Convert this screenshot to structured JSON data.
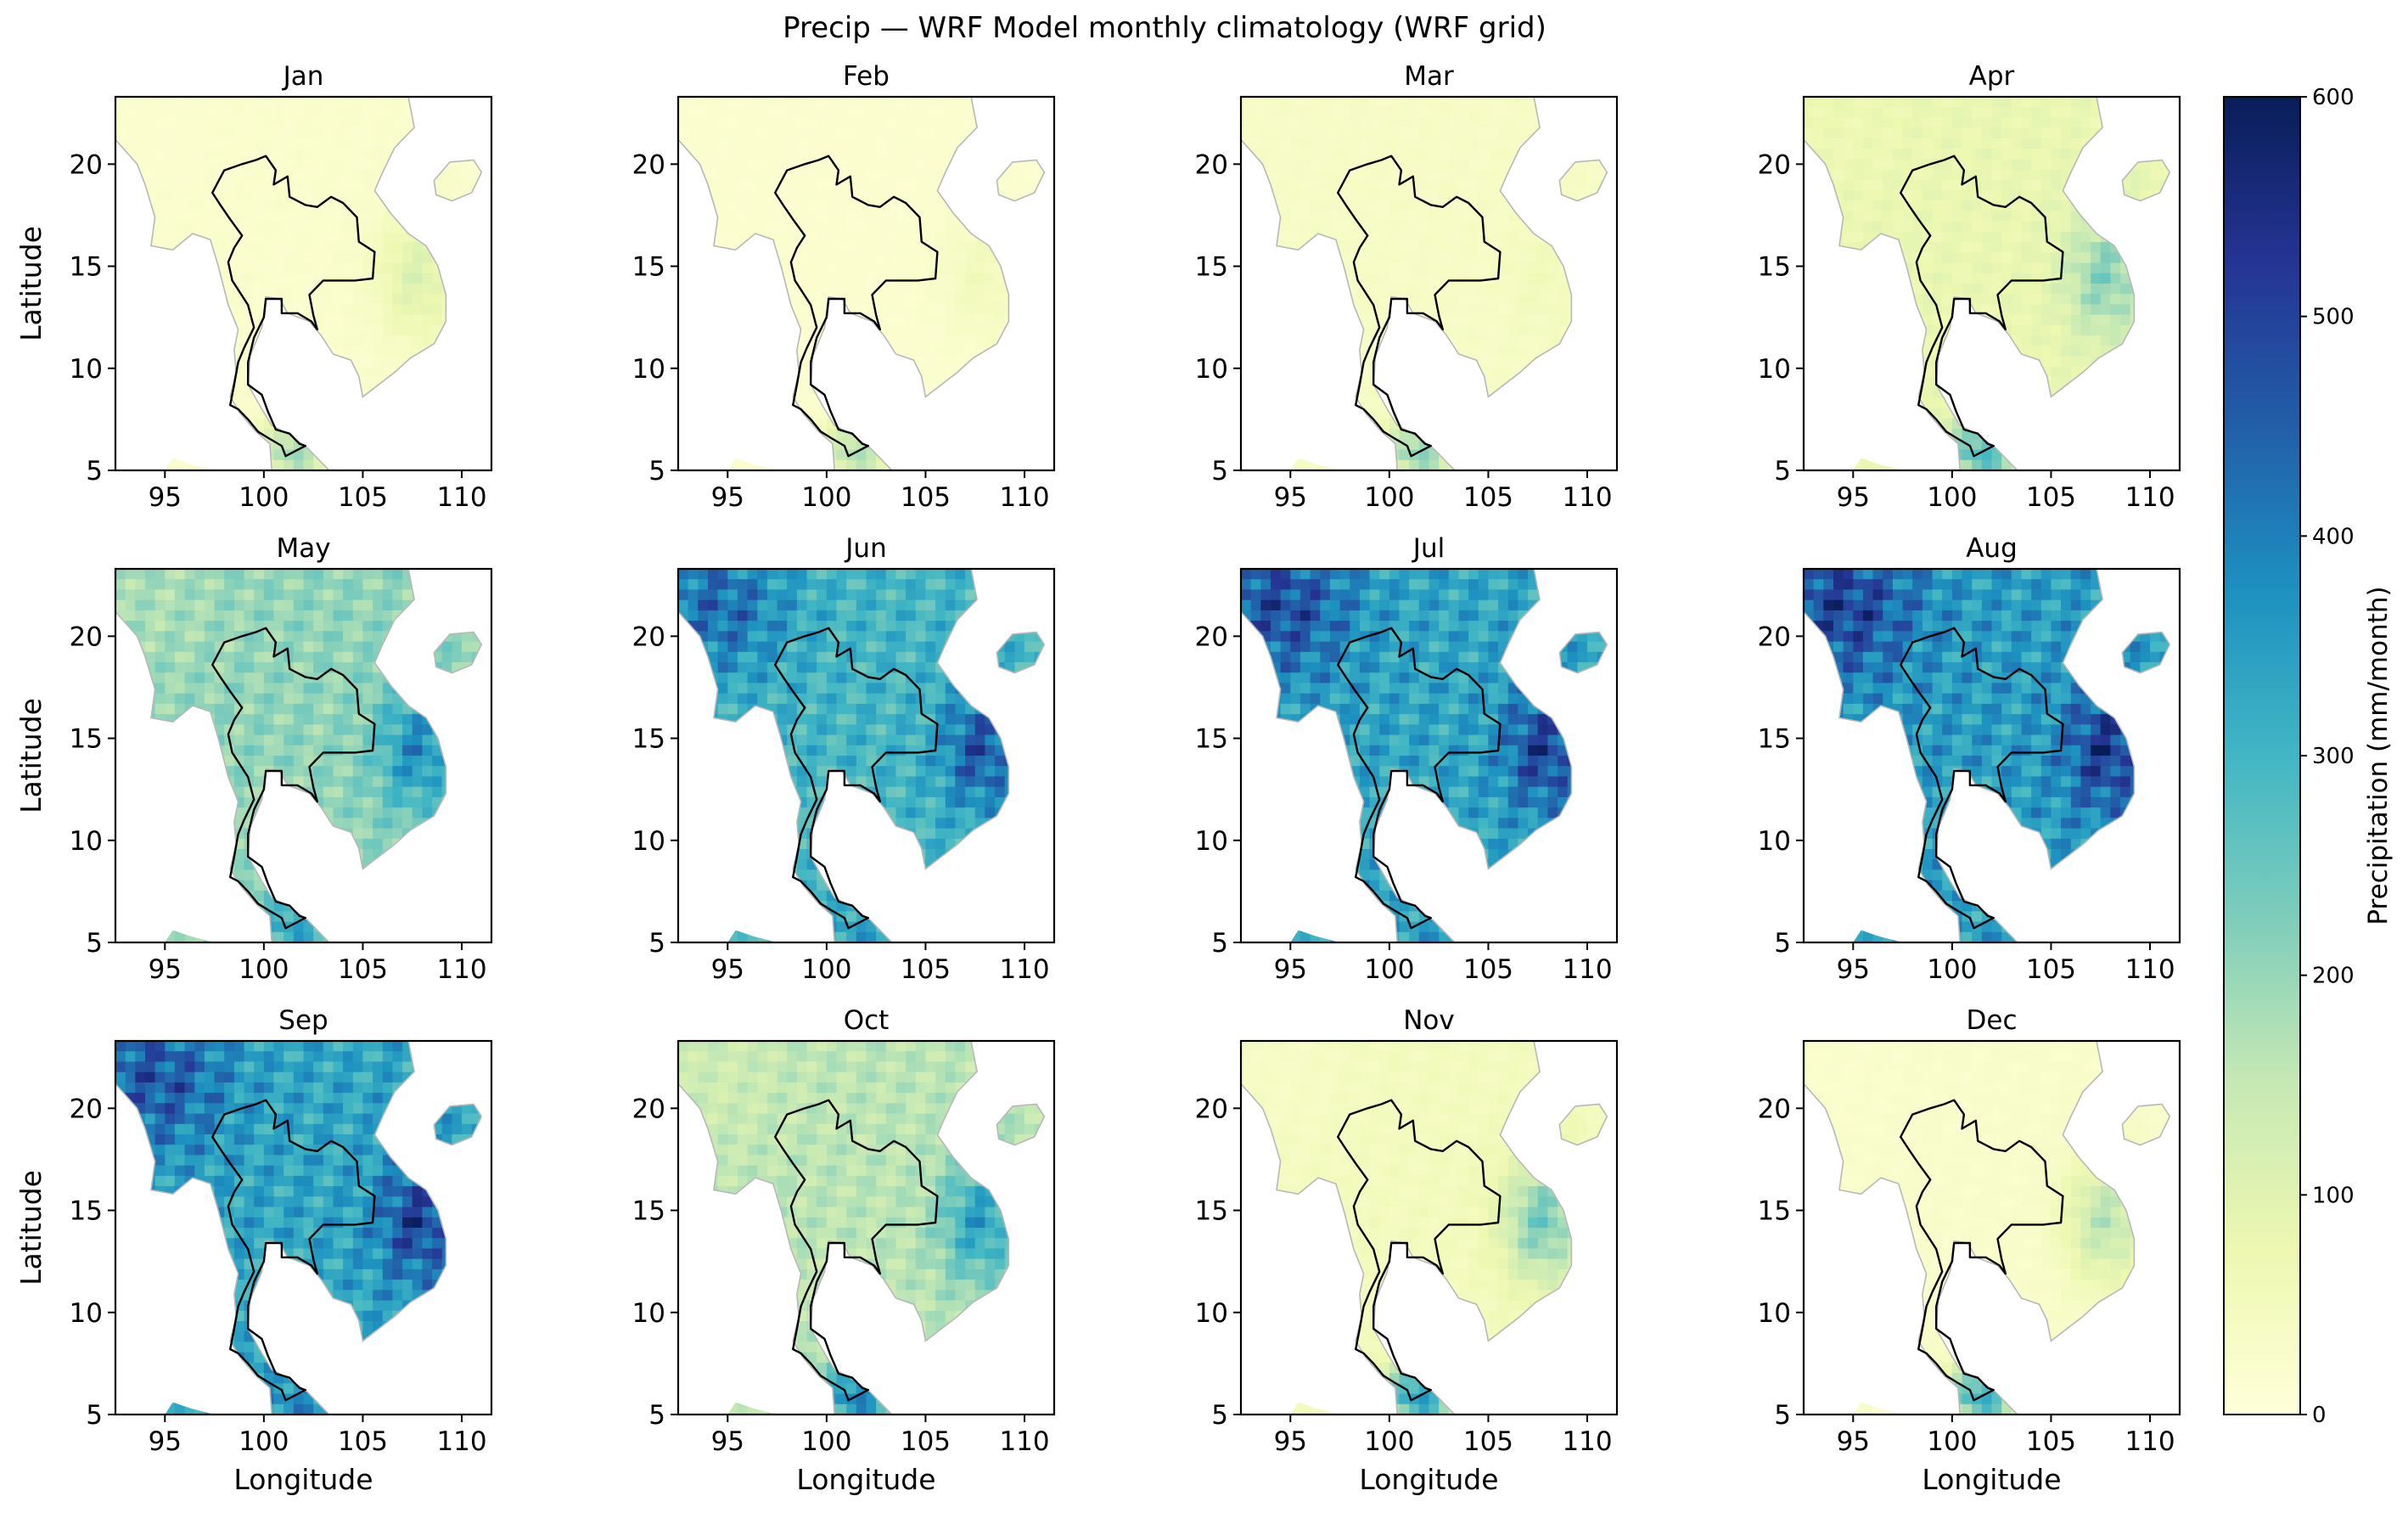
{
  "chart_data": {
    "type": "heatmap",
    "title": "Precip — WRF Model monthly climatology (WRF grid)",
    "xlabel": "Longitude",
    "ylabel": "Latitude",
    "xlim": [
      92.5,
      111.5
    ],
    "ylim": [
      5,
      23.3
    ],
    "xticks": [
      "95",
      "100",
      "105",
      "110"
    ],
    "yticks": [
      "5",
      "10",
      "15",
      "20"
    ],
    "colormap": "YlGnBu",
    "colorbar": {
      "label": "Precipitation (mm/month)",
      "range": [
        0,
        600
      ],
      "ticks": [
        "0",
        "100",
        "200",
        "300",
        "400",
        "500",
        "600"
      ],
      "colors": [
        "#ffffd9",
        "#edf8b1",
        "#c7e9b4",
        "#7fcdbb",
        "#41b6c4",
        "#1d91c0",
        "#225ea8",
        "#253494",
        "#081d58"
      ]
    },
    "panels": [
      {
        "month": "Jan",
        "mean_precip": 25,
        "north_precip": 20,
        "east_coast_precip": 120,
        "south_precip": 220
      },
      {
        "month": "Feb",
        "mean_precip": 20,
        "north_precip": 20,
        "east_coast_precip": 60,
        "south_precip": 200
      },
      {
        "month": "Mar",
        "mean_precip": 40,
        "north_precip": 40,
        "east_coast_precip": 60,
        "south_precip": 240
      },
      {
        "month": "Apr",
        "mean_precip": 90,
        "north_precip": 80,
        "east_coast_precip": 240,
        "south_precip": 320
      },
      {
        "month": "May",
        "mean_precip": 230,
        "north_precip": 200,
        "east_coast_precip": 420,
        "south_precip": 380
      },
      {
        "month": "Jun",
        "mean_precip": 330,
        "north_precip": 480,
        "east_coast_precip": 520,
        "south_precip": 380
      },
      {
        "month": "Jul",
        "mean_precip": 370,
        "north_precip": 540,
        "east_coast_precip": 560,
        "south_precip": 380
      },
      {
        "month": "Aug",
        "mean_precip": 390,
        "north_precip": 560,
        "east_coast_precip": 580,
        "south_precip": 380
      },
      {
        "month": "Sep",
        "mean_precip": 370,
        "north_precip": 520,
        "east_coast_precip": 560,
        "south_precip": 420
      },
      {
        "month": "Oct",
        "mean_precip": 180,
        "north_precip": 150,
        "east_coast_precip": 380,
        "south_precip": 450
      },
      {
        "month": "Nov",
        "mean_precip": 55,
        "north_precip": 40,
        "east_coast_precip": 260,
        "south_precip": 400
      },
      {
        "month": "Dec",
        "mean_precip": 30,
        "north_precip": 25,
        "east_coast_precip": 180,
        "south_precip": 360
      }
    ]
  }
}
